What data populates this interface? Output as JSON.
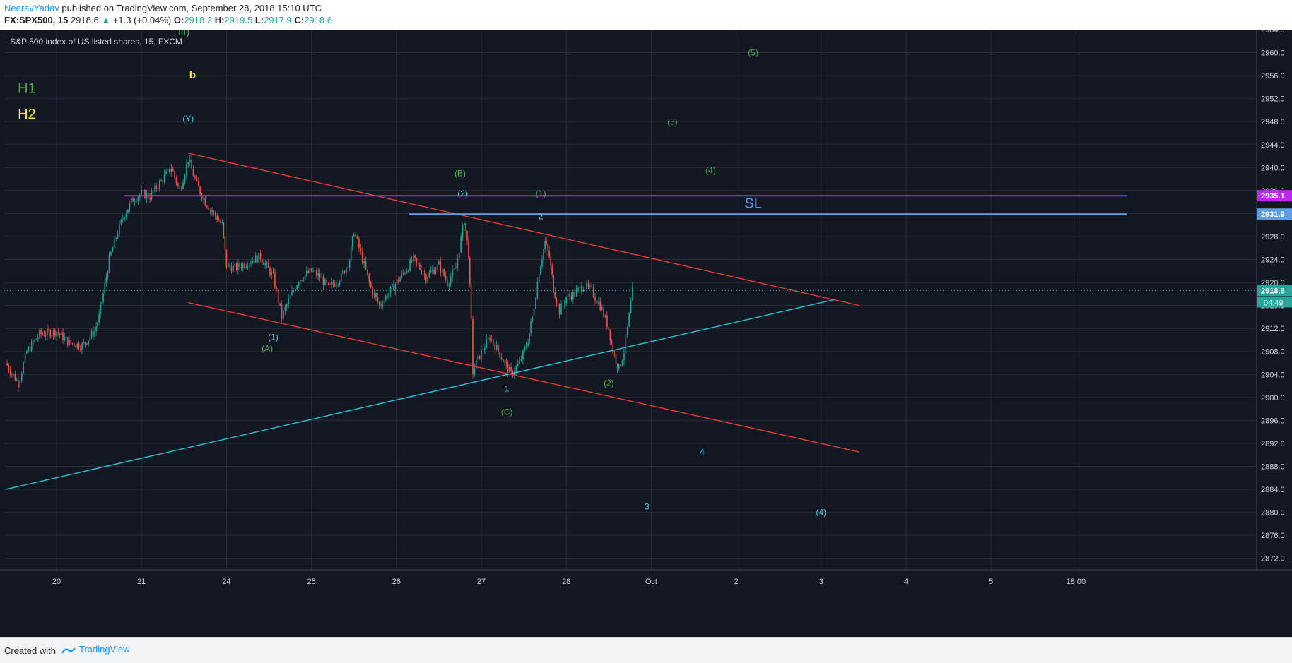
{
  "header": {
    "author": "NeeravYadav",
    "published": " published on TradingView.com, September 28, 2018 15:10 UTC",
    "symbol": "FX:SPX500, 15",
    "last": "2918.6",
    "change_arrow": "▲",
    "change": "+1.3 (+0.04%)",
    "o_label": "O:",
    "o_value": "2918.2",
    "h_label": "H:",
    "h_value": "2919.5",
    "l_label": "L:",
    "l_value": "2917.9",
    "c_label": "C:",
    "c_value": "2918.6"
  },
  "chart_title": "S&P 500 index of US listed shares, 15, FXCM",
  "footer": {
    "created_with": "Created with",
    "brand": "TradingView"
  },
  "colors": {
    "background": "#131722",
    "grid": "#2a2e39",
    "up": "#26a69a",
    "down": "#ef5350",
    "channel": "#e53935",
    "trendline": "#26c6da",
    "sl_line": "#5c9ee6",
    "magenta_line": "#c026f2",
    "green_label": "#4caf50",
    "yellow_label": "#ffeb3b",
    "cyan_label": "#4dd0e1"
  },
  "chart_data": {
    "type": "candlestick",
    "title": "S&P 500 index of US listed shares, 15, FXCM",
    "ylim": [
      2870.0,
      2964.0
    ],
    "y_ticks": [
      "2872.0",
      "2876.0",
      "2880.0",
      "2884.0",
      "2888.0",
      "2892.0",
      "2896.0",
      "2900.0",
      "2904.0",
      "2908.0",
      "2912.0",
      "2916.0",
      "2920.0",
      "2924.0",
      "2928.0",
      "2932.0",
      "2936.0",
      "2940.0",
      "2944.0",
      "2948.0",
      "2952.0",
      "2956.0",
      "2960.0",
      "2964.0"
    ],
    "x_ticks": [
      "20",
      "21",
      "24",
      "25",
      "26",
      "27",
      "28",
      "Oct",
      "2",
      "3",
      "4",
      "5",
      "18:00"
    ],
    "x_tick_pos": [
      0,
      1,
      2,
      3,
      4,
      5,
      6,
      7,
      8,
      9,
      10,
      11,
      12
    ],
    "price_path": [
      [
        -0.6,
        2906.0
      ],
      [
        -0.45,
        2902.5
      ],
      [
        -0.35,
        2908.0
      ],
      [
        -0.2,
        2911.0
      ],
      [
        0.0,
        2911.5
      ],
      [
        0.15,
        2909.5
      ],
      [
        0.3,
        2909.0
      ],
      [
        0.45,
        2911.5
      ],
      [
        0.5,
        2914.0
      ],
      [
        0.55,
        2918.0
      ],
      [
        0.62,
        2924.0
      ],
      [
        0.7,
        2928.0
      ],
      [
        0.8,
        2932.0
      ],
      [
        0.9,
        2934.5
      ],
      [
        1.0,
        2935.5
      ],
      [
        1.1,
        2935.0
      ],
      [
        1.25,
        2938.0
      ],
      [
        1.35,
        2940.0
      ],
      [
        1.45,
        2936.0
      ],
      [
        1.55,
        2941.5
      ],
      [
        1.65,
        2937.0
      ],
      [
        1.75,
        2934.0
      ],
      [
        1.85,
        2932.0
      ],
      [
        1.95,
        2930.0
      ],
      [
        2.0,
        2923.0
      ],
      [
        2.1,
        2922.5
      ],
      [
        2.25,
        2923.5
      ],
      [
        2.4,
        2924.5
      ],
      [
        2.55,
        2921.0
      ],
      [
        2.65,
        2914.0
      ],
      [
        2.75,
        2917.5
      ],
      [
        2.85,
        2920.5
      ],
      [
        3.0,
        2922.0
      ],
      [
        3.1,
        2921.0
      ],
      [
        3.2,
        2919.0
      ],
      [
        3.35,
        2921.0
      ],
      [
        3.45,
        2924.0
      ],
      [
        3.5,
        2929.0
      ],
      [
        3.6,
        2924.0
      ],
      [
        3.7,
        2919.0
      ],
      [
        3.8,
        2916.0
      ],
      [
        3.95,
        2919.0
      ],
      [
        4.1,
        2922.0
      ],
      [
        4.2,
        2924.0
      ],
      [
        4.35,
        2921.0
      ],
      [
        4.5,
        2923.0
      ],
      [
        4.6,
        2920.0
      ],
      [
        4.7,
        2922.5
      ],
      [
        4.8,
        2931.0
      ],
      [
        4.85,
        2925.0
      ],
      [
        4.88,
        2913.0
      ],
      [
        4.9,
        2904.5
      ],
      [
        5.0,
        2908.0
      ],
      [
        5.1,
        2910.5
      ],
      [
        5.2,
        2908.0
      ],
      [
        5.35,
        2904.0
      ],
      [
        5.45,
        2906.0
      ],
      [
        5.55,
        2910.0
      ],
      [
        5.6,
        2914.0
      ],
      [
        5.68,
        2922.0
      ],
      [
        5.75,
        2927.0
      ],
      [
        5.8,
        2924.5
      ],
      [
        5.85,
        2919.0
      ],
      [
        5.92,
        2915.0
      ],
      [
        6.0,
        2917.5
      ],
      [
        6.1,
        2918.0
      ],
      [
        6.2,
        2919.5
      ],
      [
        6.3,
        2918.5
      ],
      [
        6.4,
        2916.0
      ],
      [
        6.5,
        2912.0
      ],
      [
        6.55,
        2908.0
      ],
      [
        6.62,
        2905.0
      ],
      [
        6.68,
        2908.0
      ],
      [
        6.72,
        2912.0
      ],
      [
        6.78,
        2918.6
      ]
    ],
    "horizontal_levels": [
      {
        "price": 2935.1,
        "label": "2935.1",
        "color": "#c026f2"
      },
      {
        "price": 2931.9,
        "label": "2931.9",
        "color": "#5c9ee6"
      },
      {
        "price": 2918.6,
        "label": "2918.6",
        "color": "#26a69a"
      }
    ],
    "countdown": "04:49",
    "annotations": [
      {
        "text": "iii)",
        "color": "green",
        "x": 1.5,
        "y": 2963.0
      },
      {
        "text": "b",
        "color": "yellow",
        "x": 1.6,
        "y": 2955.5
      },
      {
        "text": "H1",
        "color": "green",
        "x": -0.35,
        "y": 2953.0
      },
      {
        "text": "H2",
        "color": "yellow",
        "x": -0.35,
        "y": 2948.5
      },
      {
        "text": "(Y)",
        "color": "cyan",
        "x": 1.55,
        "y": 2948.0
      },
      {
        "text": "(B)",
        "color": "green",
        "x": 4.75,
        "y": 2938.5
      },
      {
        "text": "(2)",
        "color": "cyan",
        "x": 4.78,
        "y": 2935.0
      },
      {
        "text": "(1)",
        "color": "green",
        "x": 5.7,
        "y": 2935.0
      },
      {
        "text": "2",
        "color": "cyan",
        "x": 5.7,
        "y": 2931.0
      },
      {
        "text": "SL",
        "color": "blue",
        "x": 8.2,
        "y": 2933.0
      },
      {
        "text": "(1)",
        "color": "cyan",
        "x": 2.55,
        "y": 2910.0
      },
      {
        "text": "(A)",
        "color": "green",
        "x": 2.48,
        "y": 2908.0
      },
      {
        "text": "1",
        "color": "cyan",
        "x": 5.3,
        "y": 2901.0
      },
      {
        "text": "(C)",
        "color": "green",
        "x": 5.3,
        "y": 2897.0
      },
      {
        "text": "(2)",
        "color": "green",
        "x": 6.5,
        "y": 2902.0
      },
      {
        "text": "(5)",
        "color": "green",
        "x": 8.2,
        "y": 2959.5
      },
      {
        "text": "(3)",
        "color": "green",
        "x": 7.25,
        "y": 2947.5
      },
      {
        "text": "(4)",
        "color": "green",
        "x": 7.7,
        "y": 2939.0
      },
      {
        "text": "4",
        "color": "cyan",
        "x": 7.6,
        "y": 2890.0
      },
      {
        "text": "3",
        "color": "cyan",
        "x": 6.95,
        "y": 2880.5
      },
      {
        "text": "(4)",
        "color": "cyan",
        "x": 9.0,
        "y": 2879.5
      }
    ],
    "lines": [
      {
        "name": "channel-upper",
        "color": "#e53935",
        "p1": [
          1.55,
          2942.5
        ],
        "p2": [
          9.45,
          2916.0
        ]
      },
      {
        "name": "channel-lower",
        "color": "#e53935",
        "p1": [
          1.55,
          2916.5
        ],
        "p2": [
          9.45,
          2890.5
        ]
      },
      {
        "name": "trendline",
        "color": "#26c6da",
        "p1": [
          -0.6,
          2884.0
        ],
        "p2": [
          9.15,
          2917.0
        ]
      },
      {
        "name": "magenta-level",
        "color": "#c026f2",
        "p1": [
          0.8,
          2935.1
        ],
        "p2": [
          12.6,
          2935.1
        ]
      },
      {
        "name": "sl-level",
        "color": "#5c9ee6",
        "p1": [
          4.15,
          2931.9
        ],
        "p2": [
          12.6,
          2931.9
        ]
      }
    ]
  }
}
